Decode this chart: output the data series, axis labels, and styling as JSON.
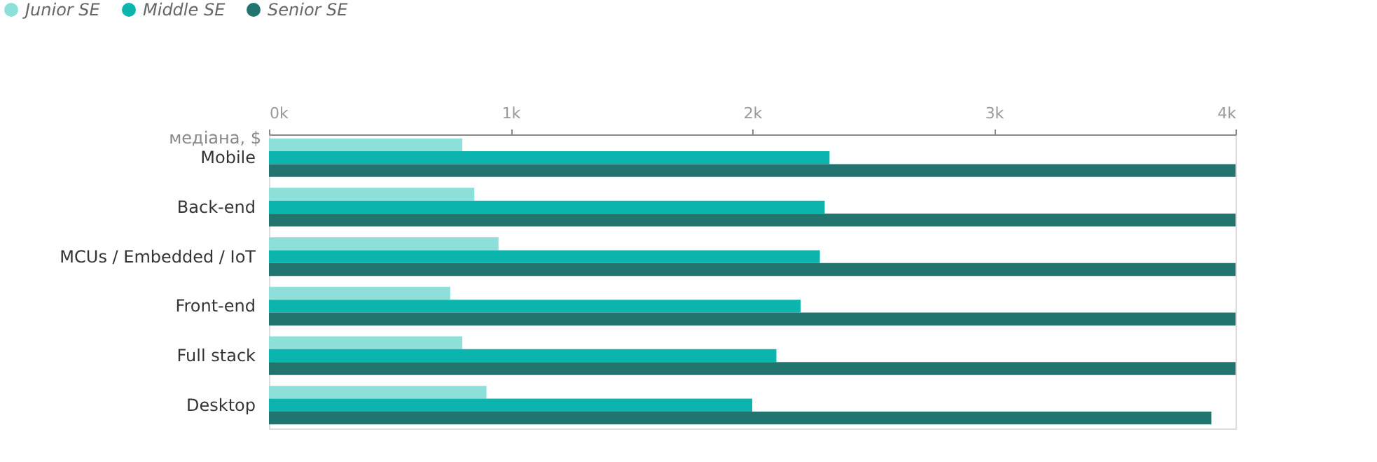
{
  "chart_data": {
    "type": "bar",
    "orientation": "horizontal",
    "xlabel": "медіана, $",
    "categories": [
      "Mobile",
      "Back-end",
      "MCUs / Embedded / IoT",
      "Front-end",
      "Full stack",
      "Desktop"
    ],
    "series": [
      {
        "name": "Junior SE",
        "color": "#8de0da",
        "values": [
          800,
          850,
          950,
          750,
          800,
          900
        ]
      },
      {
        "name": "Middle SE",
        "color": "#0bb5ae",
        "values": [
          2320,
          2300,
          2280,
          2200,
          2100,
          2000
        ]
      },
      {
        "name": "Senior SE",
        "color": "#21756e",
        "values": [
          4000,
          4000,
          4000,
          4000,
          4000,
          3900
        ]
      }
    ],
    "xlim": [
      0,
      4000
    ],
    "xticks": [
      {
        "value": 0,
        "label": "0k"
      },
      {
        "value": 1000,
        "label": "1k"
      },
      {
        "value": 2000,
        "label": "2k"
      },
      {
        "value": 3000,
        "label": "3k"
      },
      {
        "value": 4000,
        "label": "4k"
      }
    ],
    "grid": false,
    "legend": "top left"
  }
}
